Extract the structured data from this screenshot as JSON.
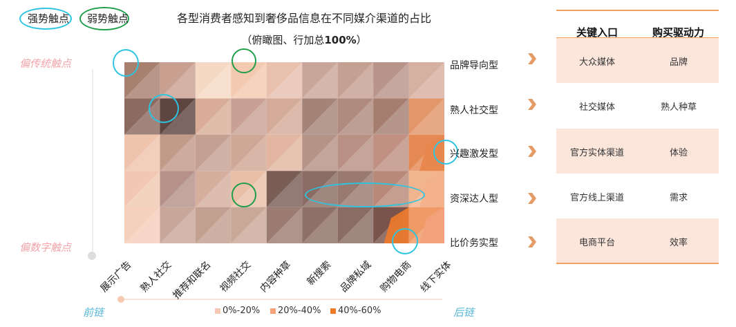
{
  "title": "各型消费者感知到奢侈品信息在不同媒介渠道的占比",
  "subtitle": "（俯瞰图、行加总",
  "subtitle_bold": "100%",
  "subtitle_end": "）",
  "legend_top": {
    "strong": "强势触点",
    "weak": "弱势触点",
    "strong_color": "#2ec4e0",
    "weak_color": "#1f9e4a"
  },
  "side_labels": {
    "top": "偏传统触点",
    "bottom": "偏数字触点",
    "color": "#f3a4a8"
  },
  "chain_labels": {
    "left": "前链",
    "right": "后链"
  },
  "chart_data": {
    "type": "heatmap",
    "title": "各型消费者感知到奢侈品信息在不同媒介渠道的占比",
    "subtitle": "（俯瞰图、行加总100%）",
    "columns": [
      "展示广告",
      "熟人社交",
      "推荐和联名",
      "视频社交",
      "内容种草",
      "新搜索",
      "品牌私域",
      "购物电商",
      "线下实体"
    ],
    "rows": [
      "品牌导向型",
      "熟人社交型",
      "兴趣激发型",
      "资深达人型",
      "比价务实型"
    ],
    "legend": [
      {
        "label": "0%-20%",
        "color": "#f6c9b3"
      },
      {
        "label": "20%-40%",
        "color": "#f3a27a"
      },
      {
        "label": "40%-60%",
        "color": "#ee7a2c"
      }
    ],
    "strong_touchpoints": [
      {
        "row": "品牌导向型",
        "column": "展示广告"
      },
      {
        "row": "熟人社交型",
        "column": "熟人社交"
      },
      {
        "row": "兴趣激发型",
        "column": "线下实体"
      },
      {
        "row": "资深达人型",
        "column": "新搜索"
      },
      {
        "row": "资深达人型",
        "column": "品牌私域"
      },
      {
        "row": "资深达人型",
        "column": "购物电商"
      },
      {
        "row": "比价务实型",
        "column": "购物电商"
      }
    ],
    "weak_touchpoints": [
      {
        "row": "品牌导向型",
        "column": "视频社交"
      },
      {
        "row": "资深达人型",
        "column": "视频社交"
      }
    ]
  },
  "table": {
    "headers": [
      "关键入口",
      "购买驱动力"
    ],
    "rows": [
      [
        "大众媒体",
        "品牌"
      ],
      [
        "社交媒体",
        "熟人种草"
      ],
      [
        "官方实体渠道",
        "体验"
      ],
      [
        "官方线上渠道",
        "需求"
      ],
      [
        "电商平台",
        "效率"
      ]
    ],
    "band_color": "#fce6dc",
    "line_color": "#f0a05a"
  },
  "arrow_color": "#e08a4a"
}
